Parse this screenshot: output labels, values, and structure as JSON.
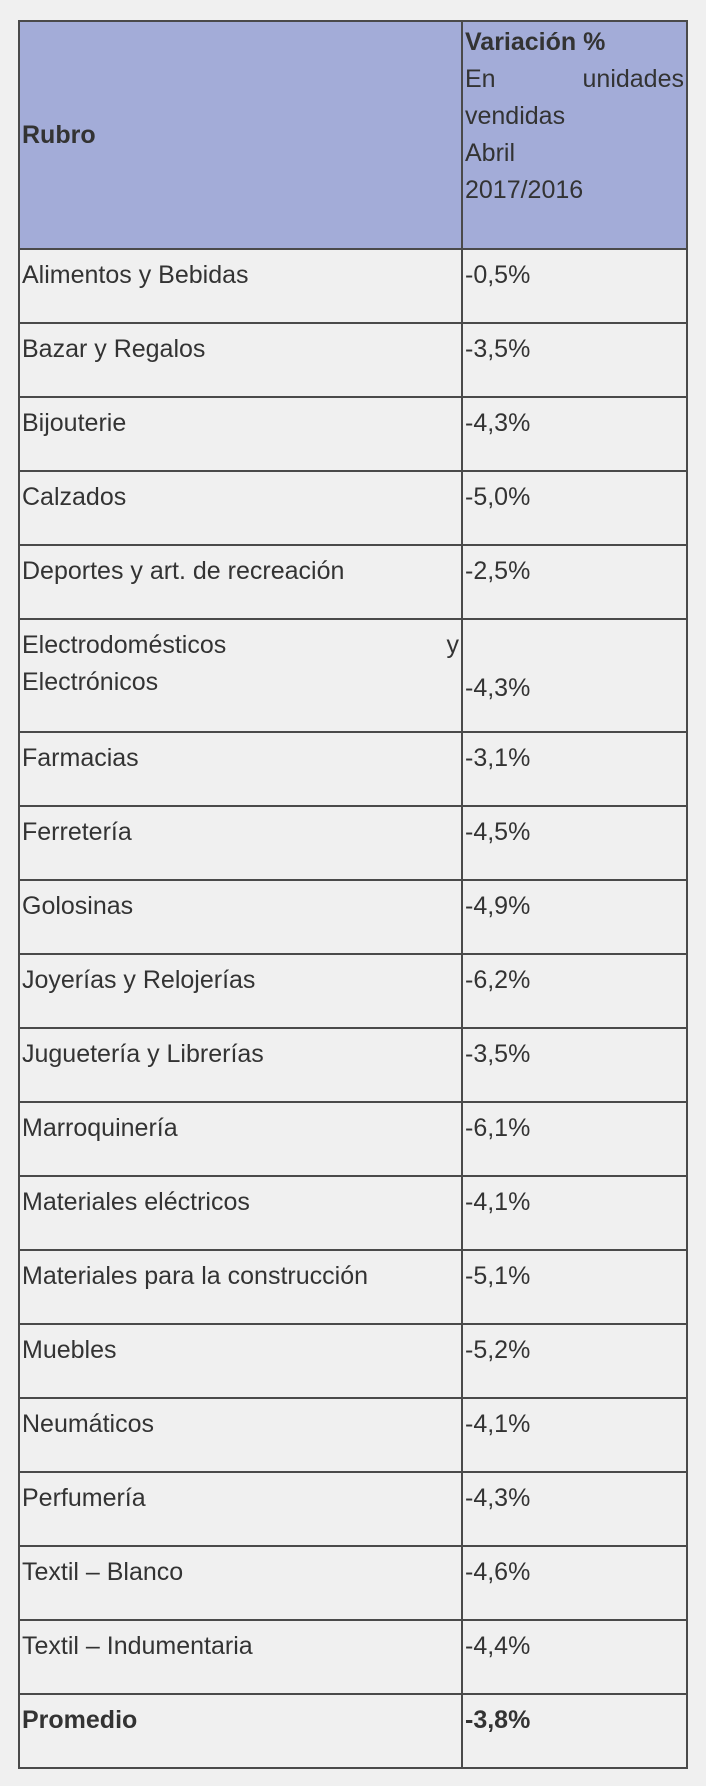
{
  "header": {
    "rubro": "Rubro",
    "variacion_title": "Variación %",
    "variacion_line1_a": "En",
    "variacion_line1_b": "unidades",
    "variacion_line2": "vendidas",
    "variacion_line3": "Abril",
    "variacion_line4": "2017/2016"
  },
  "rows": [
    {
      "rubro": "Alimentos y Bebidas",
      "valor": "-0,5%"
    },
    {
      "rubro": "Bazar y Regalos",
      "valor": "-3,5%"
    },
    {
      "rubro": "Bijouterie",
      "valor": "-4,3%"
    },
    {
      "rubro": "Calzados",
      "valor": "-5,0%"
    },
    {
      "rubro": "Deportes y art. de recreación",
      "valor": "-2,5%"
    },
    {
      "rubro_a": "Electrodomésticos",
      "rubro_b": "y",
      "rubro_c": "Electrónicos",
      "valor": "-4,3%"
    },
    {
      "rubro": "Farmacias",
      "valor": "-3,1%"
    },
    {
      "rubro": "Ferretería",
      "valor": "-4,5%"
    },
    {
      "rubro": "Golosinas",
      "valor": "-4,9%"
    },
    {
      "rubro": "Joyerías y Relojerías",
      "valor": "-6,2%"
    },
    {
      "rubro": "Juguetería y Librerías",
      "valor": "-3,5%"
    },
    {
      "rubro": "Marroquinería",
      "valor": "-6,1%"
    },
    {
      "rubro": "Materiales eléctricos",
      "valor": "-4,1%"
    },
    {
      "rubro": "Materiales para la construcción",
      "valor": "-5,1%"
    },
    {
      "rubro": "Muebles",
      "valor": "-5,2%"
    },
    {
      "rubro": "Neumáticos",
      "valor": "-4,1%"
    },
    {
      "rubro": "Perfumería",
      "valor": "-4,3%"
    },
    {
      "rubro": "Textil – Blanco",
      "valor": "-4,6%"
    },
    {
      "rubro": "Textil – Indumentaria",
      "valor": "-4,4%"
    }
  ],
  "total": {
    "rubro": "Promedio",
    "valor": "-3,8%"
  },
  "colors": {
    "header_bg": "#a3acd8",
    "page_bg": "#f0f0f0",
    "border": "#4a4a4a",
    "text": "#333333"
  }
}
